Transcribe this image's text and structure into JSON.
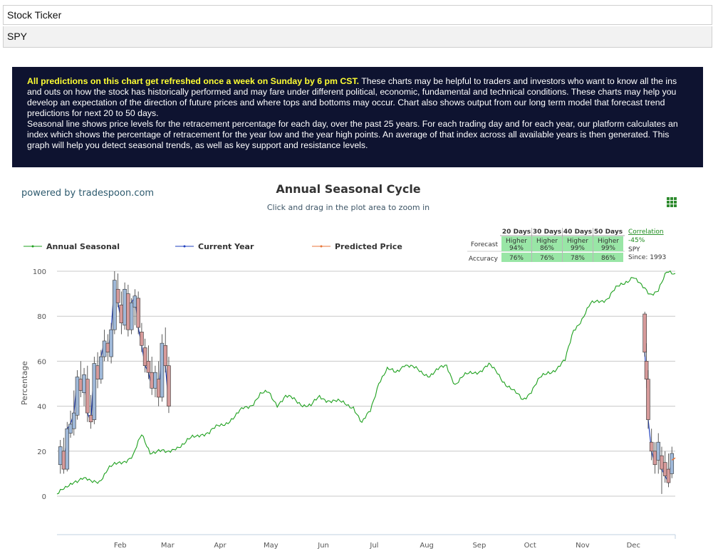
{
  "ticker": {
    "label": "Stock Ticker",
    "value": "SPY"
  },
  "banner": {
    "highlight": "All predictions on this chart get refreshed once a week on Sunday by 6 pm CST.",
    "text1": "These charts may be helpful to traders and investors who want to know all the ins and outs on how the stock has historically performed and may fare under different political, economic, fundamental and technical conditions. These charts may help you develop an expectation of the direction of future prices and where tops and bottoms may occur. Chart also shows output from our long term model that forecast trend predictions for next 20 to 50 days.",
    "text2": "Seasonal line shows price levels for the retracement percentage for each day, over the past 25 years. For each trading day and for each year, our platform calculates an index which shows the percentage of retracement for the year low and the year high points. An average of that index across all available years is then generated. This graph will help you detect seasonal trends, as well as key support and resistance levels."
  },
  "powered_by": "powered by tradespoon.com",
  "colors": {
    "seasonal": "#1fa11f",
    "current": "#1f3fbf",
    "predicted": "#e8763a",
    "table_cell": "#99e6a6",
    "banner_bg": "#0e1330",
    "banner_highlight": "#ffff33"
  },
  "icons": {
    "menu": "grid-menu-icon"
  },
  "forecast_table": {
    "headers": [
      "20 Days",
      "30 Days",
      "40 Days",
      "50 Days"
    ],
    "forecast_label": "Forecast",
    "accuracy_label": "Accuracy",
    "forecast": [
      {
        "dir": "Higher",
        "pct": "94%"
      },
      {
        "dir": "Higher",
        "pct": "86%"
      },
      {
        "dir": "Higher",
        "pct": "99%"
      },
      {
        "dir": "Higher",
        "pct": "99%"
      }
    ],
    "accuracy": [
      "76%",
      "76%",
      "78%",
      "86%"
    ],
    "correlation_label": "Correlation",
    "correlation_value": "-45%",
    "symbol": "SPY",
    "since": "Since: 1993"
  },
  "chart_data": {
    "type": "line",
    "title": "Annual Seasonal Cycle",
    "subtitle": "Click and drag in the plot area to zoom in",
    "ylabel": "Percentage",
    "xlabel": "",
    "ylim": [
      0,
      100
    ],
    "yticks": [
      0,
      20,
      40,
      60,
      80,
      100
    ],
    "xlim": [
      0,
      365
    ],
    "months": [
      {
        "label": "Feb",
        "day": 31
      },
      {
        "label": "Mar",
        "day": 59
      },
      {
        "label": "Apr",
        "day": 90
      },
      {
        "label": "May",
        "day": 120
      },
      {
        "label": "Jun",
        "day": 151
      },
      {
        "label": "Jul",
        "day": 181
      },
      {
        "label": "Aug",
        "day": 212
      },
      {
        "label": "Sep",
        "day": 243
      },
      {
        "label": "Oct",
        "day": 273
      },
      {
        "label": "Nov",
        "day": 304
      },
      {
        "label": "Dec",
        "day": 334
      }
    ],
    "legend": [
      "Annual Seasonal",
      "Current Year",
      "Predicted Price"
    ],
    "grid": true,
    "series": [
      {
        "name": "Annual Seasonal",
        "x": [
          0,
          5,
          10,
          15,
          20,
          25,
          30,
          35,
          40,
          45,
          50,
          55,
          60,
          65,
          70,
          75,
          80,
          85,
          90,
          95,
          100,
          105,
          110,
          115,
          120,
          125,
          130,
          135,
          140,
          145,
          150,
          155,
          160,
          165,
          170,
          175,
          180,
          185,
          190,
          195,
          200,
          205,
          210,
          215,
          220,
          225,
          230,
          235,
          240,
          245,
          250,
          255,
          260,
          265,
          270,
          275,
          280,
          285,
          290,
          295,
          300,
          305,
          310,
          315,
          320,
          325,
          330,
          335,
          340,
          345,
          350,
          355,
          360,
          365
        ],
        "values": [
          1,
          3,
          7,
          8,
          6,
          7,
          12,
          14,
          16,
          18,
          27,
          20,
          20,
          19,
          22,
          23,
          26,
          28,
          28,
          31,
          33,
          35,
          39,
          41,
          45,
          46,
          41,
          44,
          43,
          41,
          40,
          44,
          43,
          42,
          41,
          40,
          32,
          38,
          51,
          56,
          55,
          59,
          57,
          55,
          54,
          56,
          58,
          50,
          53,
          55,
          56,
          58,
          55,
          50,
          46,
          43,
          47,
          52,
          55,
          57,
          60,
          74,
          79,
          85,
          87,
          88,
          92,
          95,
          98,
          93,
          90,
          92,
          99,
          99
        ]
      },
      {
        "name": "Current Year",
        "candles": [
          {
            "x": 2,
            "o": 14,
            "h": 25,
            "l": 10,
            "c": 22
          },
          {
            "x": 4,
            "o": 20,
            "h": 26,
            "l": 10,
            "c": 12
          },
          {
            "x": 6,
            "o": 12,
            "h": 33,
            "l": 11,
            "c": 30
          },
          {
            "x": 8,
            "o": 28,
            "h": 38,
            "l": 26,
            "c": 32
          },
          {
            "x": 10,
            "o": 30,
            "h": 47,
            "l": 27,
            "c": 37
          },
          {
            "x": 12,
            "o": 36,
            "h": 56,
            "l": 34,
            "c": 53
          },
          {
            "x": 14,
            "o": 52,
            "h": 60,
            "l": 44,
            "c": 47
          },
          {
            "x": 16,
            "o": 46,
            "h": 57,
            "l": 40,
            "c": 54
          },
          {
            "x": 18,
            "o": 52,
            "h": 58,
            "l": 33,
            "c": 37
          },
          {
            "x": 20,
            "o": 36,
            "h": 45,
            "l": 30,
            "c": 33
          },
          {
            "x": 22,
            "o": 34,
            "h": 62,
            "l": 32,
            "c": 59
          },
          {
            "x": 24,
            "o": 58,
            "h": 64,
            "l": 48,
            "c": 52
          },
          {
            "x": 26,
            "o": 52,
            "h": 65,
            "l": 50,
            "c": 62
          },
          {
            "x": 28,
            "o": 62,
            "h": 74,
            "l": 60,
            "c": 69
          },
          {
            "x": 30,
            "o": 68,
            "h": 72,
            "l": 60,
            "c": 64
          },
          {
            "x": 32,
            "o": 62,
            "h": 77,
            "l": 59,
            "c": 74
          },
          {
            "x": 34,
            "o": 74,
            "h": 100,
            "l": 72,
            "c": 96
          },
          {
            "x": 36,
            "o": 92,
            "h": 99,
            "l": 84,
            "c": 86
          },
          {
            "x": 38,
            "o": 85,
            "h": 91,
            "l": 72,
            "c": 77
          },
          {
            "x": 40,
            "o": 76,
            "h": 95,
            "l": 74,
            "c": 92
          },
          {
            "x": 42,
            "o": 90,
            "h": 94,
            "l": 71,
            "c": 74
          },
          {
            "x": 44,
            "o": 74,
            "h": 88,
            "l": 72,
            "c": 86
          },
          {
            "x": 46,
            "o": 84,
            "h": 92,
            "l": 76,
            "c": 89
          },
          {
            "x": 48,
            "o": 88,
            "h": 91,
            "l": 72,
            "c": 75
          },
          {
            "x": 50,
            "o": 73,
            "h": 77,
            "l": 64,
            "c": 67
          },
          {
            "x": 52,
            "o": 66,
            "h": 70,
            "l": 55,
            "c": 58
          },
          {
            "x": 54,
            "o": 60,
            "h": 67,
            "l": 52,
            "c": 55
          },
          {
            "x": 56,
            "o": 55,
            "h": 62,
            "l": 45,
            "c": 48
          },
          {
            "x": 58,
            "o": 48,
            "h": 58,
            "l": 44,
            "c": 55
          },
          {
            "x": 60,
            "o": 52,
            "h": 60,
            "l": 40,
            "c": 44
          },
          {
            "x": 62,
            "o": 44,
            "h": 72,
            "l": 42,
            "c": 68
          },
          {
            "x": 64,
            "o": 67,
            "h": 75,
            "l": 55,
            "c": 58
          },
          {
            "x": 66,
            "o": 58,
            "h": 62,
            "l": 37,
            "c": 40
          },
          {
            "x": 347,
            "o": 81,
            "h": 82,
            "l": 62,
            "c": 64
          },
          {
            "x": 348,
            "o": 60,
            "h": 68,
            "l": 48,
            "c": 52
          },
          {
            "x": 349,
            "o": 52,
            "h": 56,
            "l": 30,
            "c": 34
          },
          {
            "x": 351,
            "o": 24,
            "h": 30,
            "l": 16,
            "c": 20
          },
          {
            "x": 353,
            "o": 20,
            "h": 24,
            "l": 10,
            "c": 14
          },
          {
            "x": 355,
            "o": 16,
            "h": 28,
            "l": 10,
            "c": 24
          },
          {
            "x": 357,
            "o": 18,
            "h": 22,
            "l": 1,
            "c": 12
          },
          {
            "x": 359,
            "o": 15,
            "h": 20,
            "l": 6,
            "c": 9
          },
          {
            "x": 361,
            "o": 12,
            "h": 19,
            "l": 4,
            "c": 6
          },
          {
            "x": 363,
            "o": 10,
            "h": 22,
            "l": 8,
            "c": 19
          }
        ]
      },
      {
        "name": "Predicted Price",
        "x": [
          363,
          365
        ],
        "values": [
          16,
          17
        ]
      }
    ]
  }
}
